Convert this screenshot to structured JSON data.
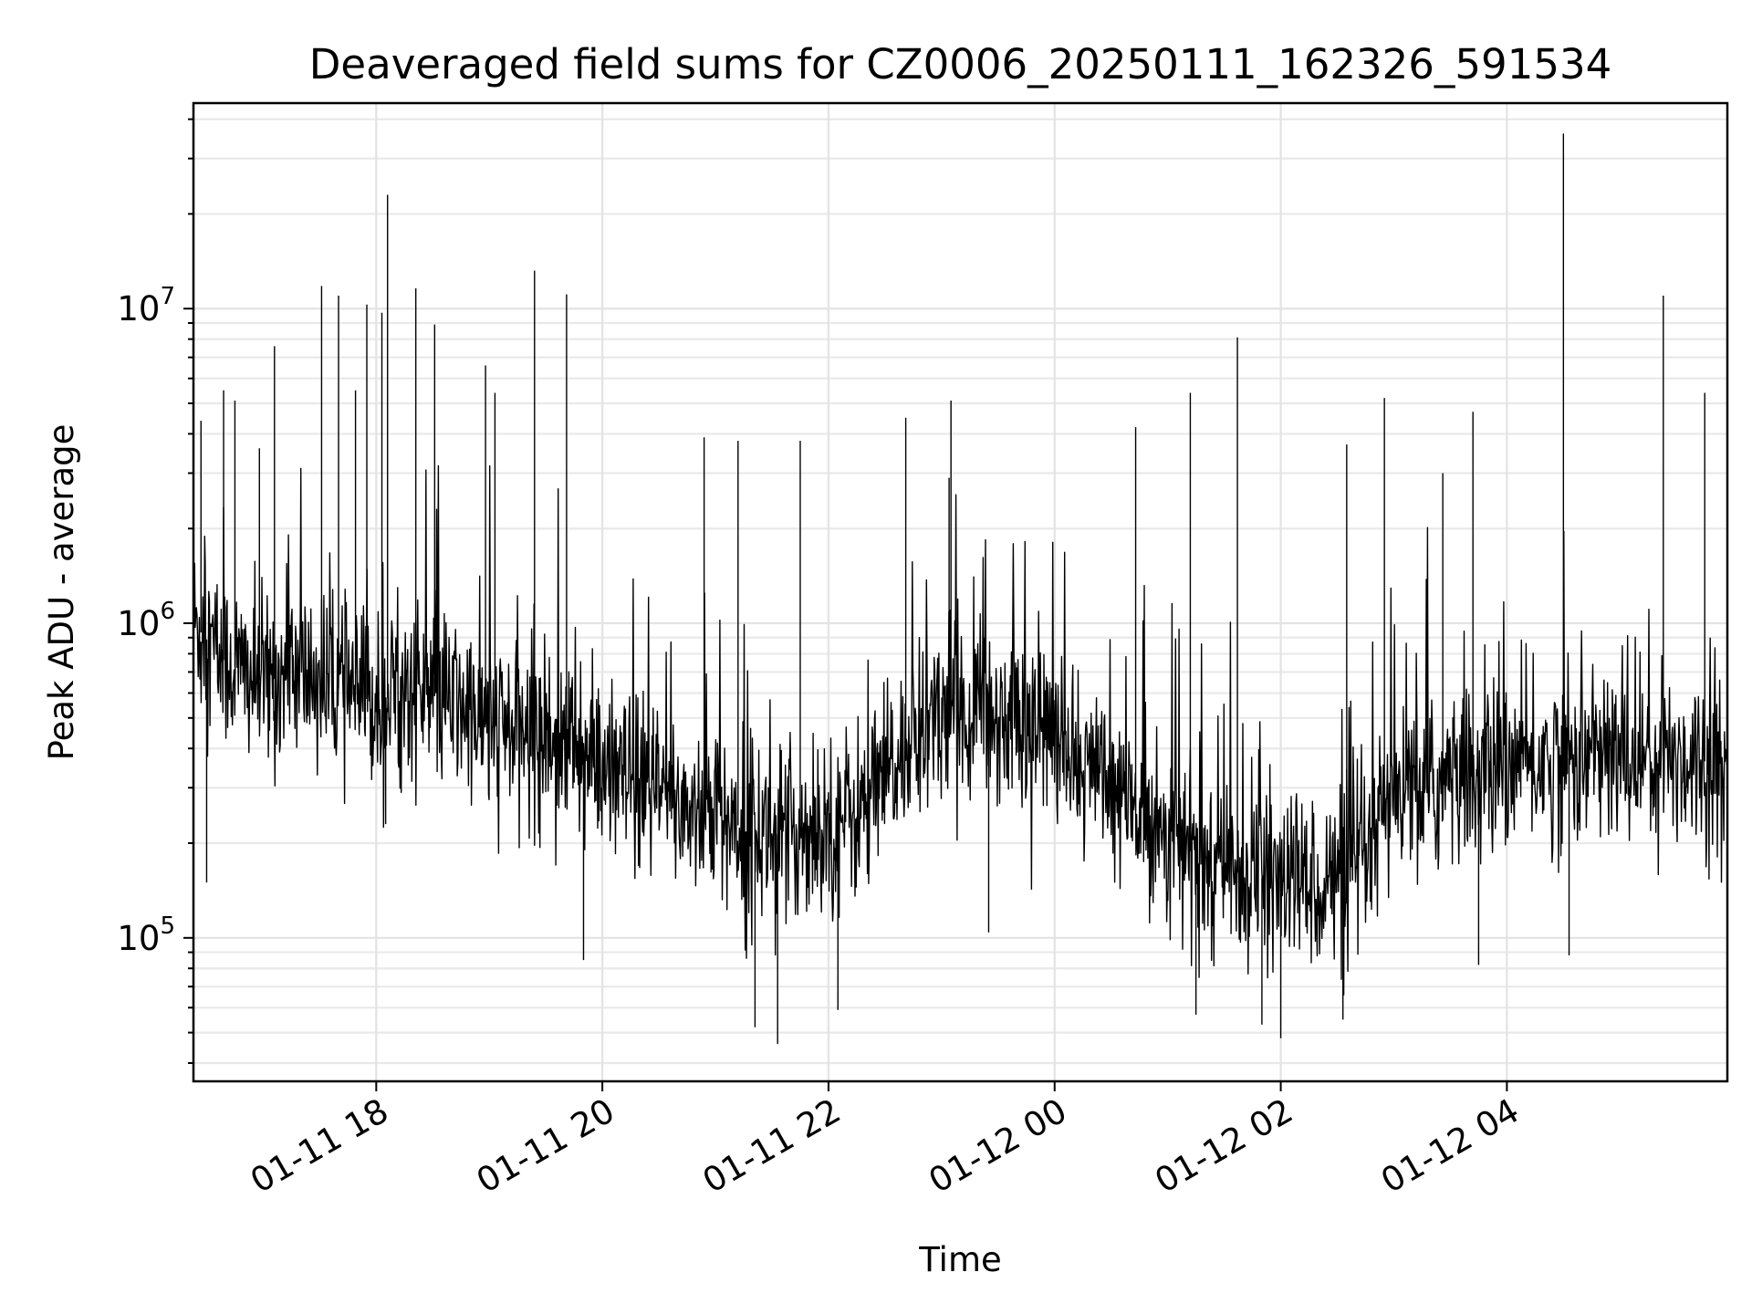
{
  "chart_data": {
    "type": "line",
    "title": "Deaveraged field sums for CZ0006_20250111_162326_591534",
    "xlabel": "Time",
    "ylabel": "Peak ADU - average",
    "xscale": "time",
    "yscale": "log",
    "xlim": [
      "2025-01-11 16:23",
      "2025-01-12 05:57"
    ],
    "ylim": [
      35000,
      45000000
    ],
    "grid": true,
    "legend": "none",
    "line_color": "#000000",
    "x_ticks": [
      {
        "value": "2025-01-11 18:00",
        "label": "01-11 18"
      },
      {
        "value": "2025-01-11 20:00",
        "label": "01-11 20"
      },
      {
        "value": "2025-01-11 22:00",
        "label": "01-11 22"
      },
      {
        "value": "2025-01-12 00:00",
        "label": "01-12 00"
      },
      {
        "value": "2025-01-12 02:00",
        "label": "01-12 02"
      },
      {
        "value": "2025-01-12 04:00",
        "label": "01-12 04"
      }
    ],
    "y_ticks": [
      {
        "value": 100000,
        "base": "10",
        "exp": "5"
      },
      {
        "value": 1000000,
        "base": "10",
        "exp": "6"
      },
      {
        "value": 10000000,
        "base": "10",
        "exp": "7"
      }
    ],
    "series": [
      {
        "x": [
          "2025-01-11 16:23",
          "2025-01-11 16:40",
          "2025-01-11 17:00",
          "2025-01-11 17:20",
          "2025-01-11 17:40",
          "2025-01-11 18:00",
          "2025-01-11 18:20",
          "2025-01-11 18:40",
          "2025-01-11 19:00",
          "2025-01-11 19:20",
          "2025-01-11 19:40",
          "2025-01-11 20:00",
          "2025-01-11 20:20",
          "2025-01-11 20:40",
          "2025-01-11 21:00",
          "2025-01-11 21:20",
          "2025-01-11 21:40",
          "2025-01-11 22:00",
          "2025-01-11 22:20",
          "2025-01-11 22:40",
          "2025-01-11 23:00",
          "2025-01-11 23:20",
          "2025-01-11 23:40",
          "2025-01-12 00:00",
          "2025-01-12 00:20",
          "2025-01-12 00:40",
          "2025-01-12 01:00",
          "2025-01-12 01:20",
          "2025-01-12 01:40",
          "2025-01-12 02:00",
          "2025-01-12 02:20",
          "2025-01-12 02:40",
          "2025-01-12 03:00",
          "2025-01-12 03:20",
          "2025-01-12 03:40",
          "2025-01-12 04:00",
          "2025-01-12 04:20",
          "2025-01-12 04:40",
          "2025-01-12 05:00",
          "2025-01-12 05:20",
          "2025-01-12 05:40",
          "2025-01-12 05:57"
        ],
        "y": [
          1000000,
          750000,
          650000,
          700000,
          620000,
          560000,
          620000,
          560000,
          470000,
          450000,
          420000,
          330000,
          300000,
          270000,
          240000,
          220000,
          210000,
          230000,
          260000,
          380000,
          550000,
          520000,
          500000,
          450000,
          330000,
          260000,
          220000,
          170000,
          160000,
          150000,
          150000,
          150000,
          280000,
          300000,
          320000,
          350000,
          360000,
          380000,
          370000,
          380000,
          370000,
          350000
        ]
      }
    ],
    "spikes": [
      {
        "x": "2025-01-11 16:27",
        "y": 4400000
      },
      {
        "x": "2025-01-11 16:39",
        "y": 5500000
      },
      {
        "x": "2025-01-11 16:45",
        "y": 5100000
      },
      {
        "x": "2025-01-11 16:58",
        "y": 3600000
      },
      {
        "x": "2025-01-11 17:06",
        "y": 7600000
      },
      {
        "x": "2025-01-11 17:31",
        "y": 11800000
      },
      {
        "x": "2025-01-11 17:40",
        "y": 11000000
      },
      {
        "x": "2025-01-11 17:49",
        "y": 5500000
      },
      {
        "x": "2025-01-11 17:55",
        "y": 10300000
      },
      {
        "x": "2025-01-11 18:03",
        "y": 9700000
      },
      {
        "x": "2025-01-11 18:06",
        "y": 23000000
      },
      {
        "x": "2025-01-11 18:21",
        "y": 11600000
      },
      {
        "x": "2025-01-11 18:31",
        "y": 8900000
      },
      {
        "x": "2025-01-11 18:58",
        "y": 6600000
      },
      {
        "x": "2025-01-11 19:03",
        "y": 5400000
      },
      {
        "x": "2025-01-11 19:24",
        "y": 13200000
      },
      {
        "x": "2025-01-11 19:41",
        "y": 11100000
      },
      {
        "x": "2025-01-11 20:54",
        "y": 3900000
      },
      {
        "x": "2025-01-11 21:12",
        "y": 3800000
      },
      {
        "x": "2025-01-11 21:45",
        "y": 3800000
      },
      {
        "x": "2025-01-11 22:41",
        "y": 4500000
      },
      {
        "x": "2025-01-11 23:05",
        "y": 5100000
      },
      {
        "x": "2025-01-11 23:04",
        "y": 2900000
      },
      {
        "x": "2025-01-12 00:43",
        "y": 4200000
      },
      {
        "x": "2025-01-12 01:12",
        "y": 5400000
      },
      {
        "x": "2025-01-12 01:37",
        "y": 8100000
      },
      {
        "x": "2025-01-12 02:35",
        "y": 3700000
      },
      {
        "x": "2025-01-12 02:55",
        "y": 5200000
      },
      {
        "x": "2025-01-12 03:26",
        "y": 3000000
      },
      {
        "x": "2025-01-12 03:42",
        "y": 4700000
      },
      {
        "x": "2025-01-12 04:30",
        "y": 36000000
      },
      {
        "x": "2025-01-12 05:23",
        "y": 11000000
      },
      {
        "x": "2025-01-12 05:45",
        "y": 5400000
      }
    ],
    "dips": [
      {
        "x": "2025-01-11 16:30",
        "y": 150000
      },
      {
        "x": "2025-01-11 18:05",
        "y": 230000
      },
      {
        "x": "2025-01-11 19:50",
        "y": 85000
      },
      {
        "x": "2025-01-11 21:21",
        "y": 52000
      },
      {
        "x": "2025-01-11 21:33",
        "y": 46000
      },
      {
        "x": "2025-01-11 22:05",
        "y": 59000
      },
      {
        "x": "2025-01-11 23:25",
        "y": 104000
      },
      {
        "x": "2025-01-12 01:15",
        "y": 57000
      },
      {
        "x": "2025-01-12 01:50",
        "y": 53000
      },
      {
        "x": "2025-01-12 02:00",
        "y": 48000
      },
      {
        "x": "2025-01-12 02:33",
        "y": 55000
      },
      {
        "x": "2025-01-12 03:45",
        "y": 82000
      },
      {
        "x": "2025-01-12 04:33",
        "y": 88000
      }
    ]
  }
}
